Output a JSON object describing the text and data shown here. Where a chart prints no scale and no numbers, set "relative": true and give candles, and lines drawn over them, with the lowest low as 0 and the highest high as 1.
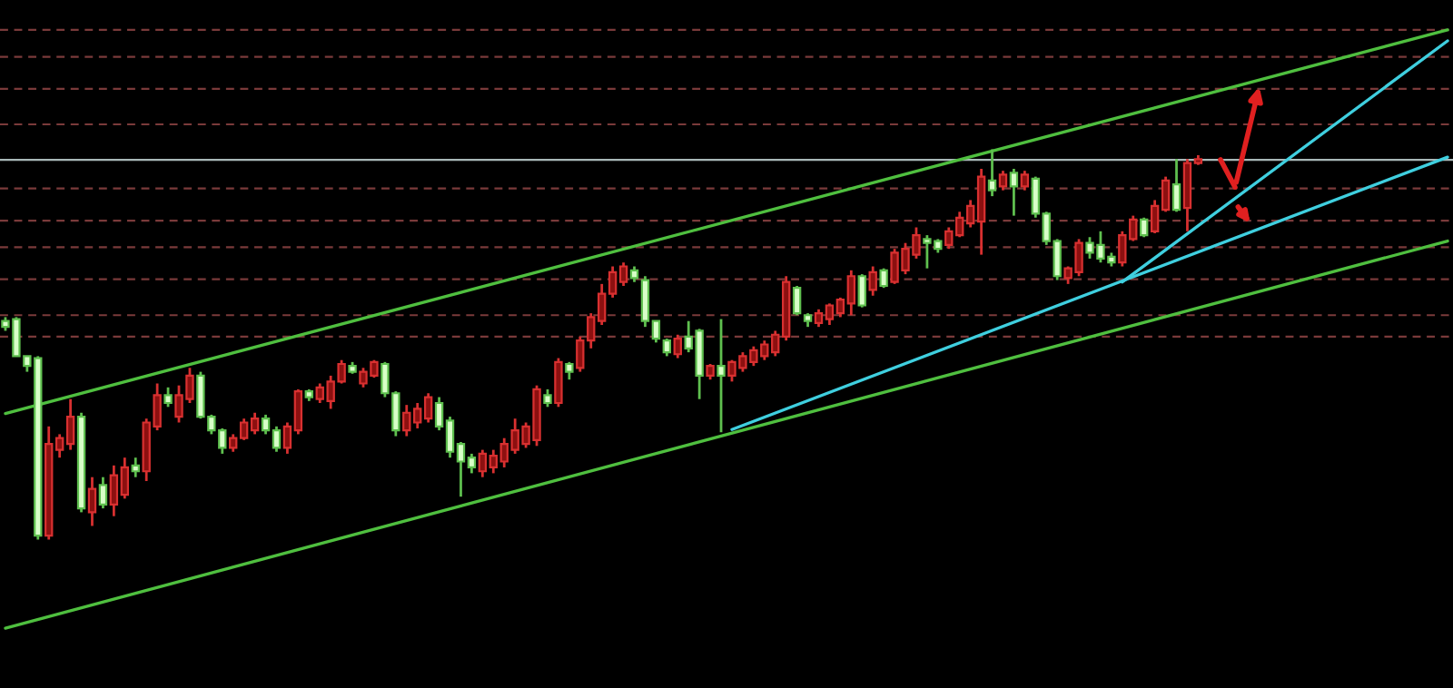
{
  "chart_data": {
    "type": "candlestick",
    "relative": true,
    "categories": [
      null,
      null,
      null,
      null,
      null,
      null,
      null,
      null,
      null,
      null,
      null,
      null,
      null,
      null,
      null,
      null,
      null,
      null,
      null,
      null,
      null,
      null,
      null,
      null,
      null,
      null,
      null,
      null,
      null,
      null,
      null,
      null,
      null,
      null,
      null,
      null,
      null,
      null,
      null,
      null,
      null,
      null,
      null,
      null,
      null,
      null,
      null,
      null,
      null,
      null,
      null,
      null,
      null,
      null,
      null,
      null,
      null,
      null,
      null,
      null,
      null,
      null,
      null,
      null,
      null,
      null,
      null,
      null,
      null,
      null,
      null,
      null,
      null,
      null,
      null,
      null,
      null,
      null,
      null,
      null,
      null,
      null,
      null,
      null,
      null,
      null,
      null,
      null,
      null,
      null,
      null,
      null,
      null,
      null,
      null,
      null,
      null,
      null,
      null,
      null,
      null,
      null,
      null,
      null,
      null,
      null,
      null,
      null,
      null,
      null,
      null,
      null,
      null,
      null,
      null,
      null,
      null,
      null,
      null,
      null,
      null,
      null,
      null,
      null,
      null,
      null,
      null,
      null,
      null,
      null,
      null,
      null,
      null,
      null
    ],
    "ohlc": [
      [
        0.56,
        0.57,
        0.535,
        0.545
      ],
      [
        0.565,
        0.57,
        0.47,
        0.47
      ],
      [
        0.47,
        0.47,
        0.43,
        0.445
      ],
      [
        0.465,
        0.47,
        0.0,
        0.01
      ],
      [
        0.01,
        0.29,
        0.0,
        0.245
      ],
      [
        0.23,
        0.27,
        0.21,
        0.26
      ],
      [
        0.245,
        0.36,
        0.23,
        0.315
      ],
      [
        0.315,
        0.325,
        0.07,
        0.08
      ],
      [
        0.07,
        0.16,
        0.035,
        0.13
      ],
      [
        0.14,
        0.16,
        0.08,
        0.09
      ],
      [
        0.09,
        0.19,
        0.06,
        0.165
      ],
      [
        0.115,
        0.21,
        0.105,
        0.185
      ],
      [
        0.19,
        0.21,
        0.16,
        0.175
      ],
      [
        0.175,
        0.31,
        0.15,
        0.3
      ],
      [
        0.29,
        0.4,
        0.28,
        0.37
      ],
      [
        0.37,
        0.39,
        0.34,
        0.35
      ],
      [
        0.315,
        0.395,
        0.3,
        0.37
      ],
      [
        0.36,
        0.44,
        0.35,
        0.42
      ],
      [
        0.42,
        0.43,
        0.31,
        0.315
      ],
      [
        0.315,
        0.32,
        0.27,
        0.28
      ],
      [
        0.28,
        0.285,
        0.22,
        0.235
      ],
      [
        0.235,
        0.27,
        0.225,
        0.26
      ],
      [
        0.26,
        0.31,
        0.255,
        0.3
      ],
      [
        0.28,
        0.325,
        0.27,
        0.31
      ],
      [
        0.31,
        0.32,
        0.27,
        0.28
      ],
      [
        0.28,
        0.29,
        0.225,
        0.235
      ],
      [
        0.235,
        0.3,
        0.22,
        0.29
      ],
      [
        0.28,
        0.385,
        0.27,
        0.38
      ],
      [
        0.38,
        0.385,
        0.355,
        0.365
      ],
      [
        0.36,
        0.4,
        0.35,
        0.39
      ],
      [
        0.355,
        0.42,
        0.335,
        0.405
      ],
      [
        0.405,
        0.46,
        0.4,
        0.45
      ],
      [
        0.445,
        0.455,
        0.425,
        0.43
      ],
      [
        0.4,
        0.44,
        0.39,
        0.43
      ],
      [
        0.42,
        0.46,
        0.415,
        0.455
      ],
      [
        0.45,
        0.455,
        0.365,
        0.375
      ],
      [
        0.375,
        0.38,
        0.265,
        0.28
      ],
      [
        0.28,
        0.345,
        0.265,
        0.325
      ],
      [
        0.3,
        0.35,
        0.285,
        0.335
      ],
      [
        0.31,
        0.375,
        0.3,
        0.365
      ],
      [
        0.35,
        0.365,
        0.28,
        0.29
      ],
      [
        0.305,
        0.315,
        0.21,
        0.225
      ],
      [
        0.245,
        0.25,
        0.11,
        0.2
      ],
      [
        0.21,
        0.22,
        0.17,
        0.185
      ],
      [
        0.175,
        0.23,
        0.16,
        0.22
      ],
      [
        0.185,
        0.23,
        0.17,
        0.215
      ],
      [
        0.2,
        0.26,
        0.185,
        0.245
      ],
      [
        0.23,
        0.31,
        0.22,
        0.28
      ],
      [
        0.245,
        0.3,
        0.235,
        0.29
      ],
      [
        0.255,
        0.395,
        0.24,
        0.385
      ],
      [
        0.37,
        0.385,
        0.34,
        0.35
      ],
      [
        0.35,
        0.465,
        0.34,
        0.455
      ],
      [
        0.45,
        0.455,
        0.41,
        0.43
      ],
      [
        0.44,
        0.52,
        0.43,
        0.51
      ],
      [
        0.51,
        0.58,
        0.49,
        0.57
      ],
      [
        0.56,
        0.655,
        0.55,
        0.63
      ],
      [
        0.63,
        0.7,
        0.62,
        0.685
      ],
      [
        0.66,
        0.71,
        0.65,
        0.7
      ],
      [
        0.69,
        0.7,
        0.66,
        0.67
      ],
      [
        0.665,
        0.675,
        0.545,
        0.56
      ],
      [
        0.56,
        0.56,
        0.505,
        0.515
      ],
      [
        0.51,
        0.515,
        0.47,
        0.48
      ],
      [
        0.475,
        0.525,
        0.465,
        0.515
      ],
      [
        0.52,
        0.56,
        0.48,
        0.49
      ],
      [
        0.535,
        0.54,
        0.36,
        0.42
      ],
      [
        0.42,
        0.45,
        0.41,
        0.445
      ],
      [
        0.445,
        0.565,
        0.275,
        0.42
      ],
      [
        0.42,
        0.46,
        0.405,
        0.455
      ],
      [
        0.44,
        0.48,
        0.43,
        0.47
      ],
      [
        0.455,
        0.495,
        0.445,
        0.485
      ],
      [
        0.47,
        0.51,
        0.46,
        0.5
      ],
      [
        0.48,
        0.535,
        0.47,
        0.525
      ],
      [
        0.52,
        0.675,
        0.51,
        0.66
      ],
      [
        0.645,
        0.65,
        0.575,
        0.58
      ],
      [
        0.575,
        0.58,
        0.545,
        0.56
      ],
      [
        0.555,
        0.59,
        0.545,
        0.58
      ],
      [
        0.565,
        0.605,
        0.55,
        0.6
      ],
      [
        0.58,
        0.62,
        0.57,
        0.615
      ],
      [
        0.605,
        0.69,
        0.575,
        0.675
      ],
      [
        0.675,
        0.68,
        0.595,
        0.6
      ],
      [
        0.64,
        0.7,
        0.625,
        0.685
      ],
      [
        0.69,
        0.695,
        0.645,
        0.65
      ],
      [
        0.66,
        0.745,
        0.655,
        0.735
      ],
      [
        0.69,
        0.76,
        0.68,
        0.745
      ],
      [
        0.73,
        0.8,
        0.72,
        0.78
      ],
      [
        0.77,
        0.78,
        0.695,
        0.76
      ],
      [
        0.765,
        0.77,
        0.735,
        0.745
      ],
      [
        0.755,
        0.8,
        0.745,
        0.79
      ],
      [
        0.78,
        0.84,
        0.775,
        0.825
      ],
      [
        0.81,
        0.87,
        0.8,
        0.855
      ],
      [
        0.815,
        0.95,
        0.73,
        0.93
      ],
      [
        0.92,
        1.0,
        0.88,
        0.895
      ],
      [
        0.905,
        0.945,
        0.895,
        0.935
      ],
      [
        0.94,
        0.95,
        0.83,
        0.905
      ],
      [
        0.905,
        0.945,
        0.895,
        0.935
      ],
      [
        0.925,
        0.93,
        0.825,
        0.835
      ],
      [
        0.835,
        0.84,
        0.755,
        0.765
      ],
      [
        0.765,
        0.77,
        0.665,
        0.675
      ],
      [
        0.67,
        0.7,
        0.655,
        0.695
      ],
      [
        0.685,
        0.77,
        0.675,
        0.76
      ],
      [
        0.76,
        0.775,
        0.72,
        0.735
      ],
      [
        0.755,
        0.79,
        0.71,
        0.72
      ],
      [
        0.725,
        0.735,
        0.7,
        0.71
      ],
      [
        0.71,
        0.79,
        0.7,
        0.78
      ],
      [
        0.77,
        0.83,
        0.765,
        0.82
      ],
      [
        0.82,
        0.825,
        0.775,
        0.78
      ],
      [
        0.79,
        0.87,
        0.785,
        0.855
      ],
      [
        0.845,
        0.93,
        0.84,
        0.92
      ],
      [
        0.91,
        0.975,
        0.84,
        0.845
      ],
      [
        0.85,
        0.975,
        0.79,
        0.965
      ],
      [
        0.965,
        0.985,
        0.96,
        0.975
      ],
      null,
      null,
      null,
      null,
      null,
      null,
      null,
      null,
      null,
      null,
      null,
      null,
      null,
      null,
      null,
      null,
      null,
      null,
      null,
      null,
      null,
      null,
      null
    ],
    "series": [
      {
        "type": "line",
        "color": "#4fbf3f",
        "values": [
          0.323,
          null,
          null,
          null,
          null,
          null,
          null,
          null,
          null,
          null,
          null,
          null,
          null,
          null,
          null,
          null,
          null,
          null,
          null,
          null,
          null,
          null,
          null,
          null,
          null,
          null,
          null,
          null,
          null,
          null,
          null,
          null,
          null,
          null,
          null,
          null,
          null,
          null,
          null,
          null,
          null,
          null,
          null,
          null,
          null,
          null,
          null,
          null,
          null,
          null,
          null,
          null,
          null,
          null,
          null,
          null,
          null,
          null,
          null,
          null,
          null,
          null,
          null,
          null,
          null,
          null,
          null,
          null,
          null,
          null,
          null,
          null,
          null,
          null,
          null,
          null,
          null,
          null,
          null,
          null,
          null,
          null,
          null,
          null,
          null,
          null,
          null,
          null,
          null,
          null,
          null,
          null,
          null,
          null,
          null,
          null,
          null,
          null,
          null,
          null,
          null,
          null,
          null,
          null,
          null,
          null,
          null,
          null,
          null,
          null,
          null,
          null,
          null,
          null,
          null,
          null,
          null,
          null,
          null,
          null,
          null,
          null,
          null,
          null,
          null,
          null,
          null,
          null,
          null,
          null,
          null,
          null,
          null,
          1.306
        ]
      },
      {
        "type": "line",
        "color": "#4fbf3f",
        "values": [
          -0.227,
          null,
          null,
          null,
          null,
          null,
          null,
          null,
          null,
          null,
          null,
          null,
          null,
          null,
          null,
          null,
          null,
          null,
          null,
          null,
          null,
          null,
          null,
          null,
          null,
          null,
          null,
          null,
          null,
          null,
          null,
          null,
          null,
          null,
          null,
          null,
          null,
          null,
          null,
          null,
          null,
          null,
          null,
          null,
          null,
          null,
          null,
          null,
          null,
          null,
          null,
          null,
          null,
          null,
          null,
          null,
          null,
          null,
          null,
          null,
          null,
          null,
          null,
          null,
          null,
          null,
          null,
          null,
          null,
          null,
          null,
          null,
          null,
          null,
          null,
          null,
          null,
          null,
          null,
          null,
          null,
          null,
          null,
          null,
          null,
          null,
          null,
          null,
          null,
          null,
          null,
          null,
          null,
          null,
          null,
          null,
          null,
          null,
          null,
          null,
          null,
          null,
          null,
          null,
          null,
          null,
          null,
          null,
          null,
          null,
          null,
          null,
          null,
          null,
          null,
          null,
          null,
          null,
          null,
          null,
          null,
          null,
          null,
          null,
          null,
          null,
          null,
          null,
          null,
          null,
          null,
          null,
          null,
          0.765
        ]
      },
      {
        "type": "line",
        "color": "#3fcfdf",
        "values": [
          null,
          null,
          null,
          null,
          null,
          null,
          null,
          null,
          null,
          null,
          null,
          null,
          null,
          null,
          null,
          null,
          null,
          null,
          null,
          null,
          null,
          null,
          null,
          null,
          null,
          null,
          null,
          null,
          null,
          null,
          null,
          null,
          null,
          null,
          null,
          null,
          null,
          null,
          null,
          null,
          null,
          null,
          null,
          null,
          null,
          null,
          null,
          null,
          null,
          null,
          null,
          null,
          null,
          null,
          null,
          null,
          null,
          null,
          null,
          null,
          null,
          null,
          null,
          null,
          null,
          null,
          null,
          0.282,
          null,
          null,
          null,
          null,
          null,
          null,
          null,
          null,
          null,
          null,
          null,
          null,
          null,
          null,
          null,
          null,
          null,
          null,
          null,
          null,
          null,
          null,
          null,
          null,
          null,
          null,
          null,
          null,
          null,
          null,
          null,
          null,
          null,
          null,
          null,
          null,
          null,
          null,
          null,
          null,
          null,
          null,
          null,
          null,
          null,
          null,
          null,
          null,
          null,
          null,
          null,
          null,
          null,
          null,
          null,
          null,
          null,
          null,
          null,
          null,
          null,
          null,
          null,
          null,
          null,
          0.98
        ]
      },
      {
        "type": "line",
        "color": "#3fcfdf",
        "values": [
          null,
          null,
          null,
          null,
          null,
          null,
          null,
          null,
          null,
          null,
          null,
          null,
          null,
          null,
          null,
          null,
          null,
          null,
          null,
          null,
          null,
          null,
          null,
          null,
          null,
          null,
          null,
          null,
          null,
          null,
          null,
          null,
          null,
          null,
          null,
          null,
          null,
          null,
          null,
          null,
          null,
          null,
          null,
          null,
          null,
          null,
          null,
          null,
          null,
          null,
          null,
          null,
          null,
          null,
          null,
          null,
          null,
          null,
          null,
          null,
          null,
          null,
          null,
          null,
          null,
          null,
          null,
          null,
          null,
          null,
          null,
          null,
          null,
          null,
          null,
          null,
          null,
          null,
          null,
          null,
          null,
          null,
          null,
          null,
          null,
          null,
          null,
          null,
          null,
          null,
          null,
          null,
          null,
          null,
          null,
          null,
          null,
          null,
          null,
          null,
          null,
          null,
          null,
          0.66,
          null,
          null,
          null,
          null,
          null,
          null,
          null,
          null,
          null,
          null,
          null,
          null,
          null,
          null,
          null,
          null,
          null,
          null,
          null,
          null,
          null,
          null,
          null,
          null,
          null,
          null,
          null,
          null,
          null,
          1.278
        ]
      }
    ],
    "ref_lines": [
      {
        "axis": "y",
        "value": 1.306,
        "color": "#7a3a3a",
        "line_style": "dashed"
      },
      {
        "axis": "y",
        "value": 1.237,
        "color": "#7a3a3a",
        "line_style": "dashed"
      },
      {
        "axis": "y",
        "value": 1.155,
        "color": "#7a3a3a",
        "line_style": "dashed"
      },
      {
        "axis": "y",
        "value": 1.064,
        "color": "#7a3a3a",
        "line_style": "dashed"
      },
      {
        "axis": "y",
        "value": 0.973,
        "color": "#a8b8b8",
        "line_style": "solid"
      },
      {
        "axis": "y",
        "value": 0.9,
        "color": "#7a3a3a",
        "line_style": "dashed"
      },
      {
        "axis": "y",
        "value": 0.817,
        "color": "#7a3a3a",
        "line_style": "dashed"
      },
      {
        "axis": "y",
        "value": 0.749,
        "color": "#7a3a3a",
        "line_style": "dashed"
      },
      {
        "axis": "y",
        "value": 0.667,
        "color": "#7a3a3a",
        "line_style": "dashed"
      },
      {
        "axis": "y",
        "value": 0.575,
        "color": "#7a3a3a",
        "line_style": "dashed"
      },
      {
        "axis": "y",
        "value": 0.52,
        "color": "#7a3a3a",
        "line_style": "dashed"
      }
    ]
  }
}
